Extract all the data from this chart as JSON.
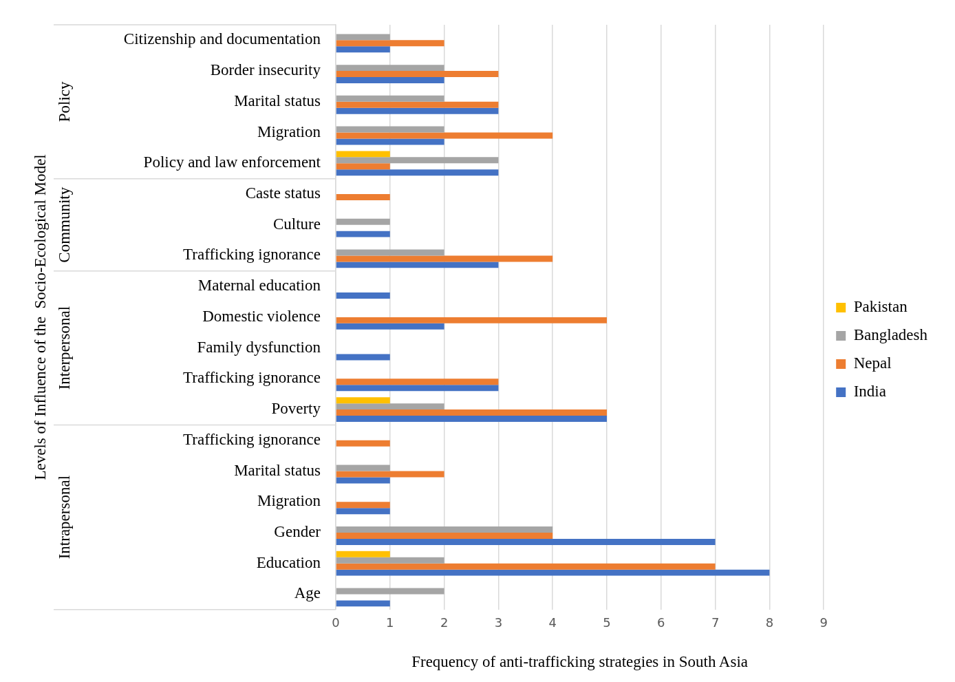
{
  "chart_data": {
    "type": "bar",
    "orientation": "horizontal",
    "xlabel": "Frequency of anti-trafficking strategies in South Asia",
    "ylabel": "Levels of Influence of the  Socio-Ecological Model",
    "categories": [
      "Citizenship and documentation",
      "Border insecurity",
      "Marital status",
      "Migration",
      "Policy and law enforcement",
      "Caste status",
      "Culture",
      "Trafficking ignorance",
      "Maternal education",
      "Domestic violence",
      "Family dysfunction",
      "Trafficking ignorance",
      "Poverty",
      "Trafficking ignorance",
      "Marital status",
      "Migration",
      "Gender",
      "Education",
      "Age"
    ],
    "annotations": [
      "Policy",
      "Community",
      "Interpersonal",
      "Intrapersonal"
    ],
    "series": [
      {
        "name": "Pakistan",
        "color": "#ffc000",
        "values": [
          null,
          null,
          null,
          null,
          1,
          null,
          null,
          null,
          null,
          null,
          null,
          null,
          1,
          null,
          null,
          null,
          null,
          1,
          null
        ]
      },
      {
        "name": "Bangladesh",
        "color": "#a5a5a5",
        "values": [
          1,
          2,
          2,
          2,
          3,
          null,
          1,
          2,
          null,
          null,
          null,
          null,
          2,
          null,
          1,
          null,
          4,
          2,
          2
        ]
      },
      {
        "name": "Nepal",
        "color": "#ed7d31",
        "values": [
          2,
          3,
          3,
          4,
          1,
          1,
          null,
          4,
          null,
          5,
          null,
          3,
          5,
          1,
          2,
          1,
          4,
          7,
          null
        ]
      },
      {
        "name": "India",
        "color": "#4472c4",
        "values": [
          1,
          2,
          3,
          2,
          3,
          null,
          1,
          3,
          1,
          2,
          1,
          3,
          5,
          null,
          1,
          1,
          7,
          8,
          1
        ]
      }
    ],
    "xlim": [
      0,
      9
    ],
    "xticks": [
      0,
      1,
      2,
      3,
      4,
      5,
      6,
      7,
      8,
      9
    ],
    "grid": "x",
    "legend": "right"
  }
}
